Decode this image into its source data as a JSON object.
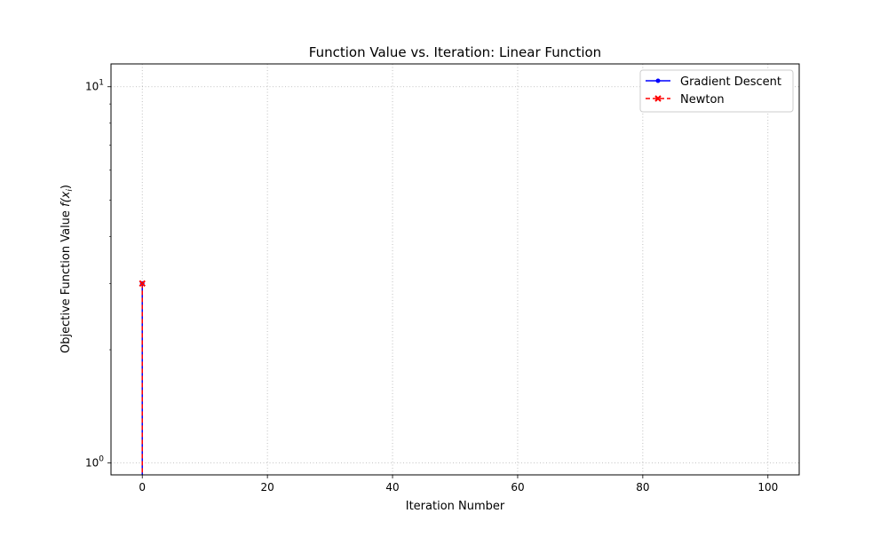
{
  "chart_data": {
    "type": "line",
    "title": "Function Value vs. Iteration: Linear Function",
    "xlabel": "Iteration Number",
    "ylabel": "Objective Function Value",
    "ylabel_math": "f(x",
    "ylabel_math_sub": "i",
    "ylabel_math_close": ")",
    "yscale": "log",
    "xlim": [
      -5,
      105
    ],
    "ylim": [
      0.93,
      11.5
    ],
    "x_ticks": [
      {
        "value": 0,
        "label": "0"
      },
      {
        "value": 20,
        "label": "20"
      },
      {
        "value": 40,
        "label": "40"
      },
      {
        "value": 60,
        "label": "60"
      },
      {
        "value": 80,
        "label": "80"
      },
      {
        "value": 100,
        "label": "100"
      }
    ],
    "y_ticks": [
      {
        "value": 1,
        "base": "10",
        "exp": "0"
      },
      {
        "value": 10,
        "base": "10",
        "exp": "1"
      }
    ],
    "grid": true,
    "legend_position": "top-right",
    "series": [
      {
        "name": "Gradient Descent",
        "color": "#0000ff",
        "marker": "dot",
        "linestyle": "solid",
        "x": [
          0,
          0
        ],
        "y": [
          3,
          0.5
        ]
      },
      {
        "name": "Newton",
        "color": "#ff0000",
        "marker": "x",
        "linestyle": "dashed",
        "x": [
          0,
          0
        ],
        "y": [
          3,
          0.5
        ]
      }
    ]
  }
}
